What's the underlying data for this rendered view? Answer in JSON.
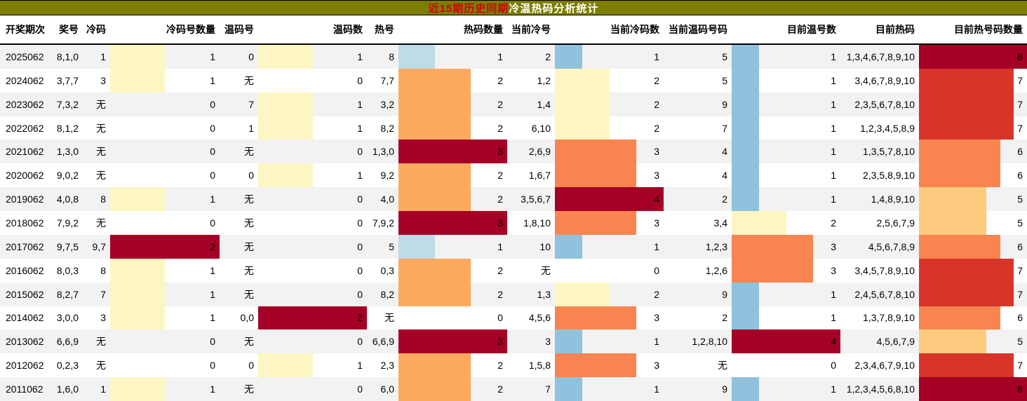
{
  "title": {
    "part1": "近15期历史同期",
    "part2": "冷温热码分析统计",
    "bg_color": "#7d7d02",
    "part1_color": "#d40000",
    "part2_color": "#ffffff"
  },
  "palette": {
    "darkRed": "#a50026",
    "red": "#d7342a",
    "orange": "#f8854f",
    "orangeMid": "#fbaa60",
    "lightOrange": "#fdcb7f",
    "paleYellow": "#fdf6c2",
    "lightBlue": "#bedbe8",
    "blue": "#90c1dd",
    "stripe": "#f2f2f2"
  },
  "columns": [
    {
      "key": "period",
      "label": "开奖期次",
      "width": 84,
      "align": "left"
    },
    {
      "key": "prize-numbers",
      "label": "奖号",
      "width": 34,
      "align": "right"
    },
    {
      "key": "cold-codes",
      "label": "冷码",
      "width": 39,
      "align": "right"
    },
    {
      "key": "cold-count",
      "label": "冷码号数量",
      "width": 156,
      "align": "right"
    },
    {
      "key": "warm-codes",
      "label": "温码号",
      "width": 55,
      "align": "right"
    },
    {
      "key": "warm-count",
      "label": "温码数",
      "width": 155,
      "align": "right"
    },
    {
      "key": "hot-codes",
      "label": "热号",
      "width": 45,
      "align": "right"
    },
    {
      "key": "hot-count",
      "label": "热码数量",
      "width": 155,
      "align": "right"
    },
    {
      "key": "current-cold",
      "label": "当前冷号",
      "width": 68,
      "align": "right"
    },
    {
      "key": "current-cold-count",
      "label": "当前冷码数",
      "width": 155,
      "align": "right"
    },
    {
      "key": "current-warm",
      "label": "当前温码号码",
      "width": 97,
      "align": "right"
    },
    {
      "key": "current-warm-count",
      "label": "目前温号数",
      "width": 155,
      "align": "right"
    },
    {
      "key": "current-hot",
      "label": "目前热码",
      "width": 112,
      "align": "right"
    },
    {
      "key": "current-hot-count",
      "label": "目前热号码数量",
      "width": 154,
      "align": "right"
    }
  ],
  "rows": [
    [
      {
        "t": "2025062"
      },
      {
        "t": "8,1,0"
      },
      {
        "t": "1"
      },
      {
        "t": "1",
        "f": 0.5,
        "c": "paleYellow"
      },
      {
        "t": "0"
      },
      {
        "t": "1",
        "f": 0.5,
        "c": "paleYellow"
      },
      {
        "t": "8"
      },
      {
        "t": "1",
        "f": 0.334,
        "c": "lightBlue"
      },
      {
        "t": "2"
      },
      {
        "t": "1",
        "f": 0.25,
        "c": "blue"
      },
      {
        "t": "5"
      },
      {
        "t": "1",
        "f": 0.25,
        "c": "blue"
      },
      {
        "t": "1,3,4,6,7,8,9,10"
      },
      {
        "t": "8",
        "f": 1,
        "c": "darkRed"
      }
    ],
    [
      {
        "t": "2024062"
      },
      {
        "t": "3,7,7"
      },
      {
        "t": "3"
      },
      {
        "t": "1",
        "f": 0.5,
        "c": "paleYellow"
      },
      {
        "t": "无"
      },
      {
        "t": "0"
      },
      {
        "t": "7,7"
      },
      {
        "t": "2",
        "f": 0.667,
        "c": "orangeMid"
      },
      {
        "t": "1,2"
      },
      {
        "t": "2",
        "f": 0.5,
        "c": "paleYellow"
      },
      {
        "t": "5"
      },
      {
        "t": "1",
        "f": 0.25,
        "c": "blue"
      },
      {
        "t": "3,4,6,7,8,9,10"
      },
      {
        "t": "7",
        "f": 0.875,
        "c": "red"
      }
    ],
    [
      {
        "t": "2023062"
      },
      {
        "t": "7,3,2"
      },
      {
        "t": "无"
      },
      {
        "t": "0"
      },
      {
        "t": "7"
      },
      {
        "t": "1",
        "f": 0.5,
        "c": "paleYellow"
      },
      {
        "t": "3,2"
      },
      {
        "t": "2",
        "f": 0.667,
        "c": "orangeMid"
      },
      {
        "t": "1,4"
      },
      {
        "t": "2",
        "f": 0.5,
        "c": "paleYellow"
      },
      {
        "t": "9"
      },
      {
        "t": "1",
        "f": 0.25,
        "c": "blue"
      },
      {
        "t": "2,3,5,6,7,8,10"
      },
      {
        "t": "7",
        "f": 0.875,
        "c": "red"
      }
    ],
    [
      {
        "t": "2022062"
      },
      {
        "t": "8,1,2"
      },
      {
        "t": "无"
      },
      {
        "t": "0"
      },
      {
        "t": "1"
      },
      {
        "t": "1",
        "f": 0.5,
        "c": "paleYellow"
      },
      {
        "t": "8,2"
      },
      {
        "t": "2",
        "f": 0.667,
        "c": "orangeMid"
      },
      {
        "t": "6,10"
      },
      {
        "t": "2",
        "f": 0.5,
        "c": "paleYellow"
      },
      {
        "t": "7"
      },
      {
        "t": "1",
        "f": 0.25,
        "c": "blue"
      },
      {
        "t": "1,2,3,4,5,8,9"
      },
      {
        "t": "7",
        "f": 0.875,
        "c": "red"
      }
    ],
    [
      {
        "t": "2021062"
      },
      {
        "t": "1,3,0"
      },
      {
        "t": "无"
      },
      {
        "t": "0"
      },
      {
        "t": "无"
      },
      {
        "t": "0"
      },
      {
        "t": "1,3,0"
      },
      {
        "t": "3",
        "f": 1,
        "c": "darkRed"
      },
      {
        "t": "2,6,9"
      },
      {
        "t": "3",
        "f": 0.75,
        "c": "orange"
      },
      {
        "t": "4"
      },
      {
        "t": "1",
        "f": 0.25,
        "c": "blue"
      },
      {
        "t": "1,3,5,7,8,10"
      },
      {
        "t": "6",
        "f": 0.75,
        "c": "orange"
      }
    ],
    [
      {
        "t": "2020062"
      },
      {
        "t": "9,0,2"
      },
      {
        "t": "无"
      },
      {
        "t": "0"
      },
      {
        "t": "0"
      },
      {
        "t": "1",
        "f": 0.5,
        "c": "paleYellow"
      },
      {
        "t": "9,2"
      },
      {
        "t": "2",
        "f": 0.667,
        "c": "orangeMid"
      },
      {
        "t": "1,6,7"
      },
      {
        "t": "3",
        "f": 0.75,
        "c": "orange"
      },
      {
        "t": "4"
      },
      {
        "t": "1",
        "f": 0.25,
        "c": "blue"
      },
      {
        "t": "2,3,5,8,9,10"
      },
      {
        "t": "6",
        "f": 0.75,
        "c": "orange"
      }
    ],
    [
      {
        "t": "2019062"
      },
      {
        "t": "4,0,8"
      },
      {
        "t": "8"
      },
      {
        "t": "1",
        "f": 0.5,
        "c": "paleYellow"
      },
      {
        "t": "无"
      },
      {
        "t": "0"
      },
      {
        "t": "4,0"
      },
      {
        "t": "2",
        "f": 0.667,
        "c": "orangeMid"
      },
      {
        "t": "3,5,6,7"
      },
      {
        "t": "4",
        "f": 1,
        "c": "darkRed"
      },
      {
        "t": "2"
      },
      {
        "t": "1",
        "f": 0.25,
        "c": "blue"
      },
      {
        "t": "1,4,8,9,10"
      },
      {
        "t": "5",
        "f": 0.625,
        "c": "lightOrange"
      }
    ],
    [
      {
        "t": "2018062"
      },
      {
        "t": "7,9,2"
      },
      {
        "t": "无"
      },
      {
        "t": "0"
      },
      {
        "t": "无"
      },
      {
        "t": "0"
      },
      {
        "t": "7,9,2"
      },
      {
        "t": "3",
        "f": 1,
        "c": "darkRed"
      },
      {
        "t": "1,8,10"
      },
      {
        "t": "3",
        "f": 0.75,
        "c": "orange"
      },
      {
        "t": "3,4"
      },
      {
        "t": "2",
        "f": 0.5,
        "c": "paleYellow"
      },
      {
        "t": "2,5,6,7,9"
      },
      {
        "t": "5",
        "f": 0.625,
        "c": "lightOrange"
      }
    ],
    [
      {
        "t": "2017062"
      },
      {
        "t": "9,7,5"
      },
      {
        "t": "9,7"
      },
      {
        "t": "2",
        "f": 1,
        "c": "darkRed"
      },
      {
        "t": "无"
      },
      {
        "t": "0"
      },
      {
        "t": "5"
      },
      {
        "t": "1",
        "f": 0.334,
        "c": "lightBlue"
      },
      {
        "t": "10"
      },
      {
        "t": "1",
        "f": 0.25,
        "c": "blue"
      },
      {
        "t": "1,2,3"
      },
      {
        "t": "3",
        "f": 0.75,
        "c": "orange"
      },
      {
        "t": "4,5,6,7,8,9"
      },
      {
        "t": "6",
        "f": 0.75,
        "c": "orange"
      }
    ],
    [
      {
        "t": "2016062"
      },
      {
        "t": "8,0,3"
      },
      {
        "t": "8"
      },
      {
        "t": "1",
        "f": 0.5,
        "c": "paleYellow"
      },
      {
        "t": "无"
      },
      {
        "t": "0"
      },
      {
        "t": "0,3"
      },
      {
        "t": "2",
        "f": 0.667,
        "c": "orangeMid"
      },
      {
        "t": "无"
      },
      {
        "t": "0"
      },
      {
        "t": "1,2,6"
      },
      {
        "t": "3",
        "f": 0.75,
        "c": "orange"
      },
      {
        "t": "3,4,5,7,8,9,10"
      },
      {
        "t": "7",
        "f": 0.875,
        "c": "red"
      }
    ],
    [
      {
        "t": "2015062"
      },
      {
        "t": "8,2,7"
      },
      {
        "t": "7"
      },
      {
        "t": "1",
        "f": 0.5,
        "c": "paleYellow"
      },
      {
        "t": "无"
      },
      {
        "t": "0"
      },
      {
        "t": "8,2"
      },
      {
        "t": "2",
        "f": 0.667,
        "c": "orangeMid"
      },
      {
        "t": "1,3"
      },
      {
        "t": "2",
        "f": 0.5,
        "c": "paleYellow"
      },
      {
        "t": "9"
      },
      {
        "t": "1",
        "f": 0.25,
        "c": "blue"
      },
      {
        "t": "2,4,5,6,7,8,10"
      },
      {
        "t": "7",
        "f": 0.875,
        "c": "red"
      }
    ],
    [
      {
        "t": "2014062"
      },
      {
        "t": "3,0,0"
      },
      {
        "t": "3"
      },
      {
        "t": "1",
        "f": 0.5,
        "c": "paleYellow"
      },
      {
        "t": "0,0"
      },
      {
        "t": "2",
        "f": 1,
        "c": "darkRed"
      },
      {
        "t": "无"
      },
      {
        "t": "0"
      },
      {
        "t": "4,5,6"
      },
      {
        "t": "3",
        "f": 0.75,
        "c": "orange"
      },
      {
        "t": "2"
      },
      {
        "t": "1",
        "f": 0.25,
        "c": "blue"
      },
      {
        "t": "1,3,7,8,9,10"
      },
      {
        "t": "6",
        "f": 0.75,
        "c": "orange"
      }
    ],
    [
      {
        "t": "2013062"
      },
      {
        "t": "6,6,9"
      },
      {
        "t": "无"
      },
      {
        "t": "0"
      },
      {
        "t": "无"
      },
      {
        "t": "0"
      },
      {
        "t": "6,6,9"
      },
      {
        "t": "3",
        "f": 1,
        "c": "darkRed"
      },
      {
        "t": "3"
      },
      {
        "t": "1",
        "f": 0.25,
        "c": "blue"
      },
      {
        "t": "1,2,8,10"
      },
      {
        "t": "4",
        "f": 1,
        "c": "darkRed"
      },
      {
        "t": "4,5,6,7,9"
      },
      {
        "t": "5",
        "f": 0.625,
        "c": "lightOrange"
      }
    ],
    [
      {
        "t": "2012062"
      },
      {
        "t": "0,2,3"
      },
      {
        "t": "无"
      },
      {
        "t": "0"
      },
      {
        "t": "0"
      },
      {
        "t": "1",
        "f": 0.5,
        "c": "paleYellow"
      },
      {
        "t": "2,3"
      },
      {
        "t": "2",
        "f": 0.667,
        "c": "orangeMid"
      },
      {
        "t": "1,5,8"
      },
      {
        "t": "3",
        "f": 0.75,
        "c": "orange"
      },
      {
        "t": "无"
      },
      {
        "t": "0"
      },
      {
        "t": "2,3,4,6,7,9,10"
      },
      {
        "t": "7",
        "f": 0.875,
        "c": "red"
      }
    ],
    [
      {
        "t": "2011062"
      },
      {
        "t": "1,6,0"
      },
      {
        "t": "1"
      },
      {
        "t": "1",
        "f": 0.5,
        "c": "paleYellow"
      },
      {
        "t": "无"
      },
      {
        "t": "0"
      },
      {
        "t": "6,0"
      },
      {
        "t": "2",
        "f": 0.667,
        "c": "orangeMid"
      },
      {
        "t": "7"
      },
      {
        "t": "1",
        "f": 0.25,
        "c": "blue"
      },
      {
        "t": "9"
      },
      {
        "t": "1",
        "f": 0.25,
        "c": "blue"
      },
      {
        "t": "1,2,3,4,5,6,8,10"
      },
      {
        "t": "8",
        "f": 1,
        "c": "darkRed"
      }
    ]
  ]
}
